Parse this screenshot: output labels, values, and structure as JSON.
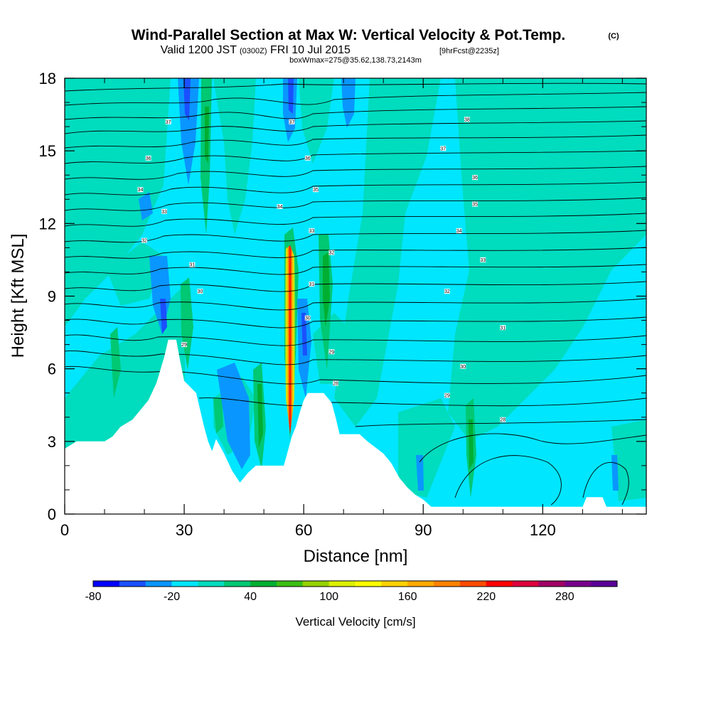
{
  "header": {
    "title": "Wind-Parallel Section at Max W: Vertical Velocity & Pot.Temp.",
    "copyright": "(C)",
    "valid_main": "Valid 1200 JST",
    "valid_utc": "(0300Z)",
    "valid_date": "FRI 10 Jul 2015",
    "forecast": "[9hrFcst@2235z]",
    "box_info": "boxWmax=275@35.62,138.73,2143m"
  },
  "chart_data": {
    "type": "heatmap",
    "xlabel": "Distance [nm]",
    "ylabel": "Height [Kft MSL]",
    "xlim": [
      0,
      146
    ],
    "ylim": [
      0,
      18
    ],
    "x_ticks": [
      0,
      30,
      60,
      90,
      120
    ],
    "y_ticks": [
      0,
      3,
      6,
      9,
      12,
      15,
      18
    ],
    "colorbar": {
      "label": "Vertical Velocity [cm/s]",
      "min": -80,
      "step": 20,
      "tick_labels": [
        "-80",
        "-20",
        "40",
        "100",
        "160",
        "220",
        "280"
      ],
      "colors": [
        "#0000ff",
        "#1a50ff",
        "#0a96ff",
        "#00e6ff",
        "#00dcbe",
        "#00c873",
        "#00af32",
        "#3cbe14",
        "#96d200",
        "#dcf000",
        "#ffff00",
        "#ffd200",
        "#ffaa00",
        "#ff8200",
        "#ff4b00",
        "#ff0000",
        "#dc003c",
        "#a00064",
        "#78008c",
        "#5a0096"
      ]
    },
    "terrain_kft": [
      [
        0,
        2.7
      ],
      [
        3,
        3
      ],
      [
        10,
        3
      ],
      [
        12,
        3.2
      ],
      [
        14,
        3.6
      ],
      [
        17,
        3.9
      ],
      [
        19,
        4.3
      ],
      [
        21,
        4.7
      ],
      [
        23,
        5.4
      ],
      [
        25,
        6.5
      ],
      [
        26,
        7.2
      ],
      [
        28,
        7.2
      ],
      [
        29,
        6.3
      ],
      [
        30,
        5.5
      ],
      [
        33,
        5.0
      ],
      [
        34,
        4.3
      ],
      [
        35,
        3.6
      ],
      [
        36,
        3.0
      ],
      [
        37,
        2.6
      ],
      [
        38,
        3.1
      ],
      [
        40,
        2.5
      ],
      [
        42,
        1.8
      ],
      [
        44,
        1.3
      ],
      [
        46,
        1.7
      ],
      [
        48,
        2.0
      ],
      [
        55,
        2.0
      ],
      [
        56,
        2.6
      ],
      [
        57,
        3.2
      ],
      [
        58,
        3.6
      ],
      [
        59,
        4.2
      ],
      [
        60,
        4.7
      ],
      [
        61,
        5.0
      ],
      [
        65,
        5.0
      ],
      [
        67,
        4.6
      ],
      [
        68,
        4.0
      ],
      [
        69,
        3.3
      ],
      [
        74,
        3.3
      ],
      [
        76,
        3.0
      ],
      [
        80,
        2.5
      ],
      [
        82,
        2.1
      ],
      [
        84,
        1.5
      ],
      [
        86,
        1.1
      ],
      [
        88,
        0.8
      ],
      [
        90,
        0.6
      ],
      [
        92,
        0.3
      ],
      [
        130,
        0.3
      ],
      [
        131,
        0.7
      ],
      [
        135,
        0.7
      ],
      [
        136,
        0.3
      ],
      [
        146,
        0.3
      ]
    ],
    "updraft_core": {
      "x": 57.5,
      "max_cm_s": 275
    },
    "contour_labels": [
      {
        "x": 26,
        "y": 16.2,
        "text": "37"
      },
      {
        "x": 21,
        "y": 14.7,
        "text": "36"
      },
      {
        "x": 19,
        "y": 13.4,
        "text": "34"
      },
      {
        "x": 25,
        "y": 12.5,
        "text": "33"
      },
      {
        "x": 20,
        "y": 11.3,
        "text": "32"
      },
      {
        "x": 32,
        "y": 10.3,
        "text": "31"
      },
      {
        "x": 34,
        "y": 9.2,
        "text": "30"
      },
      {
        "x": 30,
        "y": 7.0,
        "text": "29"
      },
      {
        "x": 57,
        "y": 16.2,
        "text": "37"
      },
      {
        "x": 61,
        "y": 14.7,
        "text": "36"
      },
      {
        "x": 63,
        "y": 13.4,
        "text": "35"
      },
      {
        "x": 54,
        "y": 12.7,
        "text": "34"
      },
      {
        "x": 62,
        "y": 11.7,
        "text": "33"
      },
      {
        "x": 67,
        "y": 10.8,
        "text": "32"
      },
      {
        "x": 62,
        "y": 9.5,
        "text": "31"
      },
      {
        "x": 61,
        "y": 8.1,
        "text": "30"
      },
      {
        "x": 67,
        "y": 6.7,
        "text": "29"
      },
      {
        "x": 68,
        "y": 5.4,
        "text": "28"
      },
      {
        "x": 101,
        "y": 16.3,
        "text": "38"
      },
      {
        "x": 95,
        "y": 15.1,
        "text": "37"
      },
      {
        "x": 103,
        "y": 13.9,
        "text": "36"
      },
      {
        "x": 103,
        "y": 12.8,
        "text": "35"
      },
      {
        "x": 99,
        "y": 11.7,
        "text": "34"
      },
      {
        "x": 105,
        "y": 10.5,
        "text": "33"
      },
      {
        "x": 96,
        "y": 9.2,
        "text": "32"
      },
      {
        "x": 110,
        "y": 7.7,
        "text": "31"
      },
      {
        "x": 100,
        "y": 6.1,
        "text": "30"
      },
      {
        "x": 96,
        "y": 4.9,
        "text": "29"
      },
      {
        "x": 110,
        "y": 3.9,
        "text": "28"
      }
    ]
  }
}
